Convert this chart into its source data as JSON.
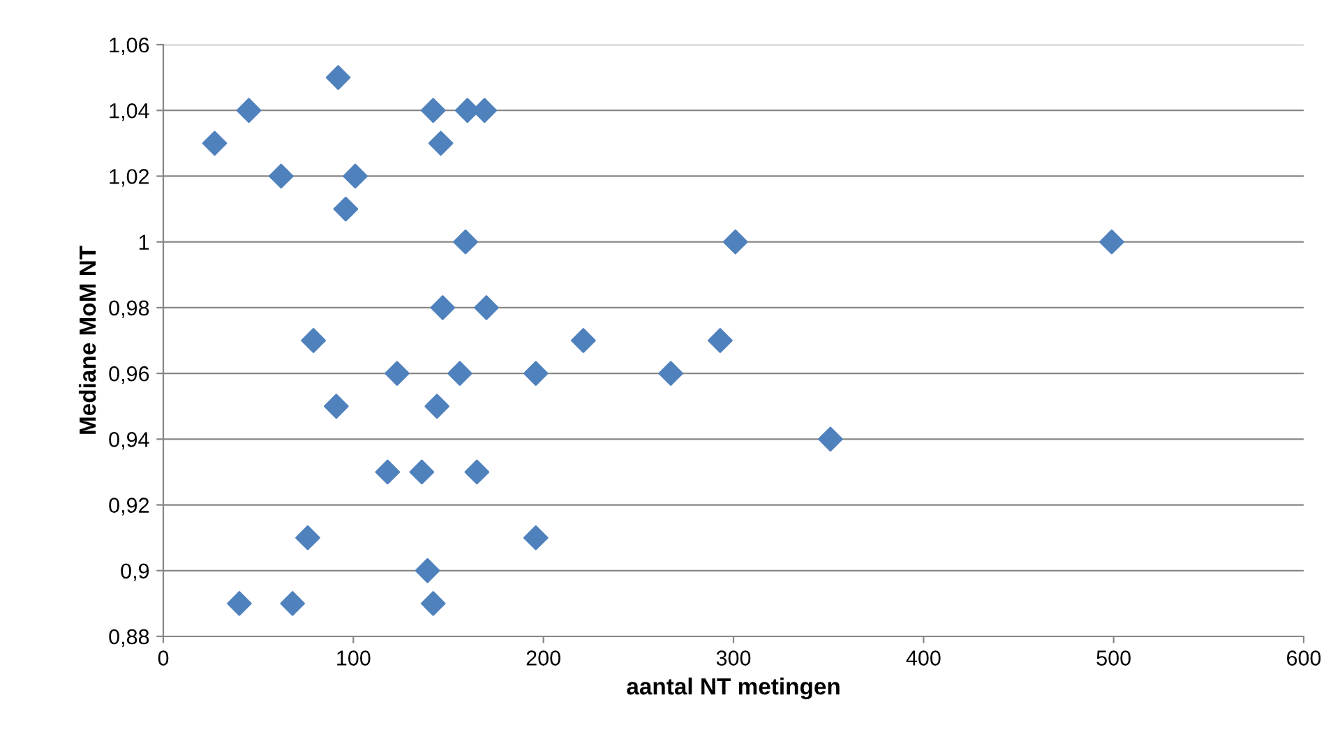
{
  "chart_data": {
    "type": "scatter",
    "xlabel": "aantal NT metingen",
    "ylabel": "Mediane MoM NT",
    "x": [
      92,
      45,
      142,
      160,
      169,
      27,
      146,
      62,
      101,
      96,
      159,
      301,
      499,
      147,
      170,
      79,
      221,
      293,
      123,
      156,
      196,
      267,
      91,
      144,
      351,
      118,
      136,
      165,
      76,
      196,
      139,
      40,
      68,
      142
    ],
    "values": [
      1.05,
      1.04,
      1.04,
      1.04,
      1.04,
      1.03,
      1.03,
      1.02,
      1.02,
      1.01,
      1.0,
      1.0,
      1.0,
      0.98,
      0.98,
      0.97,
      0.97,
      0.97,
      0.96,
      0.96,
      0.96,
      0.96,
      0.95,
      0.95,
      0.94,
      0.93,
      0.93,
      0.93,
      0.91,
      0.91,
      0.9,
      0.89,
      0.89,
      0.89
    ],
    "color": "#4f81bd",
    "marker": "diamond",
    "xlim": [
      0,
      600
    ],
    "xticks": [
      0,
      100,
      200,
      300,
      400,
      500,
      600
    ],
    "ylim": [
      0.88,
      1.06
    ],
    "yticks": [
      {
        "value": 0.88,
        "label": "0,88"
      },
      {
        "value": 0.9,
        "label": "0,9"
      },
      {
        "value": 0.92,
        "label": "0,92"
      },
      {
        "value": 0.94,
        "label": "0,94"
      },
      {
        "value": 0.96,
        "label": "0,96"
      },
      {
        "value": 0.98,
        "label": "0,98"
      },
      {
        "value": 1.0,
        "label": "1"
      },
      {
        "value": 1.02,
        "label": "1,02"
      },
      {
        "value": 1.04,
        "label": "1,04"
      },
      {
        "value": 1.06,
        "label": "1,06"
      }
    ],
    "grid": "y",
    "legend": false
  }
}
